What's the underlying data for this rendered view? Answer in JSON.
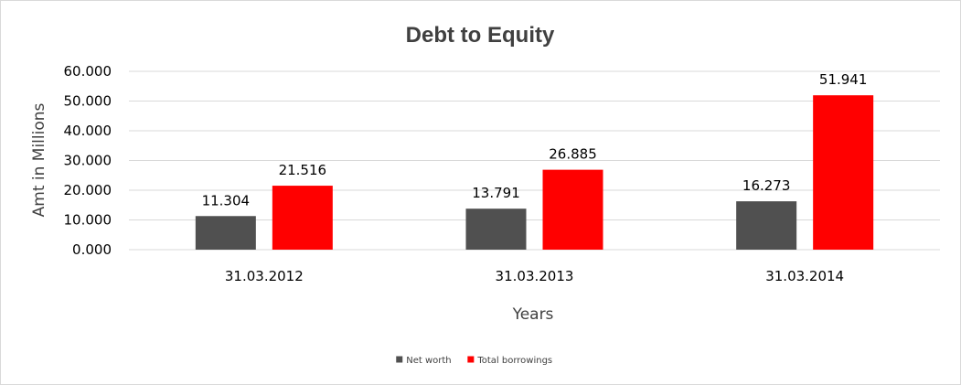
{
  "chart_data": {
    "type": "bar",
    "title": "Debt to Equity",
    "xlabel": "Years",
    "ylabel": "Amt in Millions",
    "categories": [
      "31.03.2012",
      "31.03.2013",
      "31.03.2014"
    ],
    "series": [
      {
        "name": "Net worth",
        "color": "#505050",
        "values": [
          11.304,
          13.791,
          16.273
        ]
      },
      {
        "name": "Total borrowings",
        "color": "#ff0000",
        "values": [
          21.516,
          26.885,
          51.941
        ]
      }
    ],
    "y_ticks": [
      "0.000",
      "10.000",
      "20.000",
      "30.000",
      "40.000",
      "50.000",
      "60.000"
    ],
    "data_labels": [
      [
        "11.304",
        "13.791",
        "16.273"
      ],
      [
        "21.516",
        "26.885",
        "51.941"
      ]
    ],
    "ylim": [
      0,
      60
    ],
    "grid": true,
    "legend": "bottom-center"
  }
}
